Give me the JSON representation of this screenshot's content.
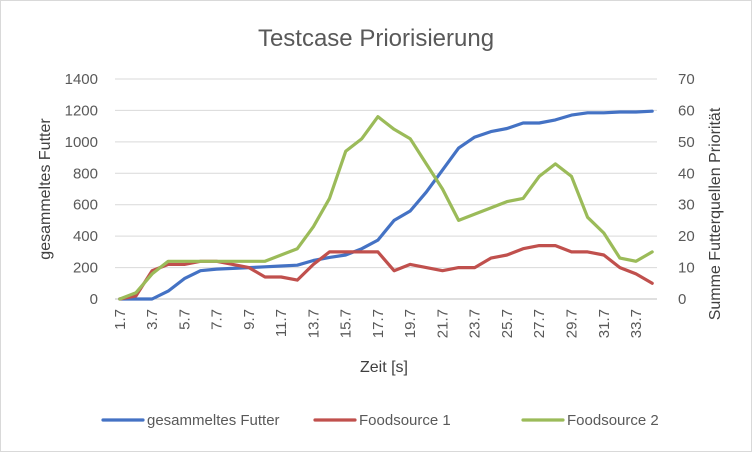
{
  "chart_data": {
    "type": "line",
    "title": "Testcase Priorisierung",
    "xlabel": "Zeit [s]",
    "ylabel": "gesammeltes Futter",
    "y2label": "Summe Futterquellen Priorität",
    "ylim": [
      0,
      1400
    ],
    "y2lim": [
      0,
      70
    ],
    "yticks": [
      0,
      200,
      400,
      600,
      800,
      1000,
      1200,
      1400
    ],
    "y2ticks": [
      0,
      10,
      20,
      30,
      40,
      50,
      60,
      70
    ],
    "grid": true,
    "legend_position": "bottom",
    "x": [
      1.7,
      2.7,
      3.7,
      4.7,
      5.7,
      6.7,
      7.7,
      8.7,
      9.7,
      10.7,
      11.7,
      12.7,
      13.7,
      14.7,
      15.7,
      16.7,
      17.7,
      18.7,
      19.7,
      20.7,
      21.7,
      22.7,
      23.7,
      24.7,
      25.7,
      26.7,
      27.7,
      28.7,
      29.7,
      30.7,
      31.7,
      32.7,
      33.7,
      34.7
    ],
    "x_tick_labels": [
      "1.7",
      "3.7",
      "5.7",
      "7.7",
      "9.7",
      "11.7",
      "13.7",
      "15.7",
      "17.7",
      "19.7",
      "21.7",
      "23.7",
      "25.7",
      "27.7",
      "29.7",
      "31.7",
      "33.7"
    ],
    "series": [
      {
        "name": "gesammeltes Futter",
        "axis": "left",
        "color": "#4472C4",
        "values": [
          0,
          0,
          0,
          50,
          130,
          180,
          190,
          195,
          200,
          205,
          210,
          215,
          245,
          265,
          280,
          320,
          375,
          500,
          560,
          680,
          820,
          960,
          1030,
          1065,
          1085,
          1120,
          1120,
          1140,
          1170,
          1185,
          1185,
          1190,
          1190,
          1195
        ]
      },
      {
        "name": "Foodsource 1",
        "axis": "right",
        "color": "#C0504D",
        "values": [
          0,
          1,
          9,
          11,
          11,
          12,
          12,
          11,
          10,
          7,
          7,
          6,
          11,
          15,
          15,
          15,
          15,
          9,
          11,
          10,
          9,
          10,
          10,
          13,
          14,
          16,
          17,
          17,
          15,
          15,
          14,
          10,
          8,
          5
        ]
      },
      {
        "name": "Foodsource 2",
        "axis": "right",
        "color": "#9BBB59",
        "values": [
          0,
          2,
          8,
          12,
          12,
          12,
          12,
          12,
          12,
          12,
          14,
          16,
          23,
          32,
          47,
          51,
          58,
          54,
          51,
          43,
          35,
          25,
          27,
          29,
          31,
          32,
          39,
          43,
          39,
          26,
          21,
          13,
          12,
          15
        ]
      }
    ]
  }
}
